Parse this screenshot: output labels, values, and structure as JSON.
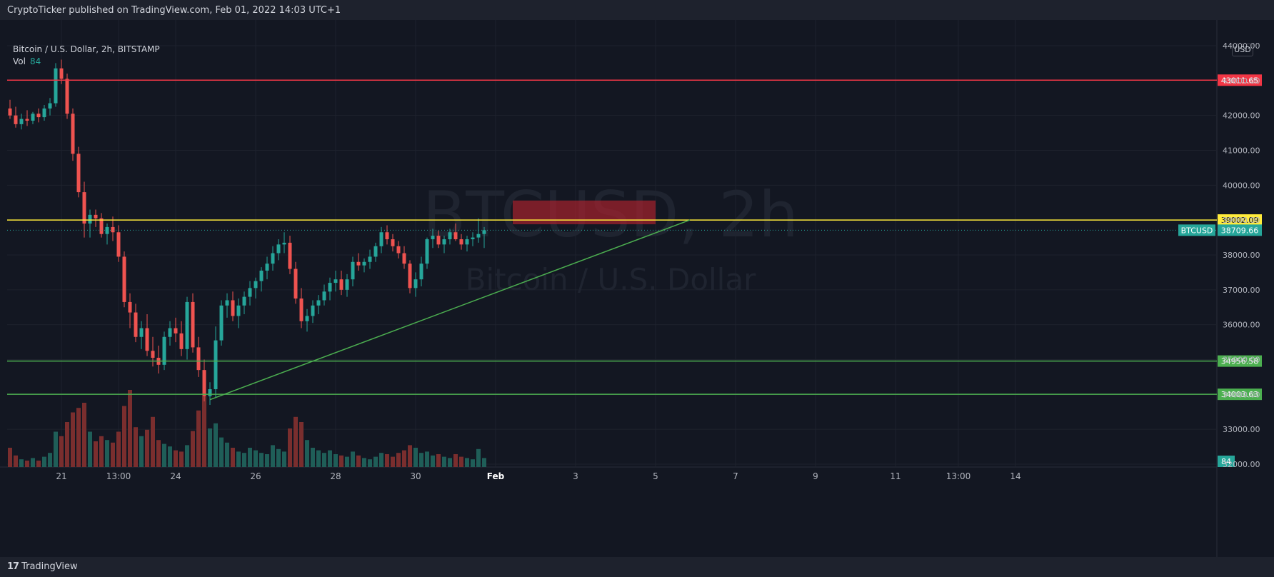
{
  "header": {
    "publisher": "CryptoTicker published on TradingView.com, Feb 01, 2022 14:03 UTC+1"
  },
  "footer": {
    "logo_text": "TradingView",
    "logo_mark": "17"
  },
  "legend": {
    "symbol": "Bitcoin / U.S. Dollar, 2h, BITSTAMP",
    "vol_label": "Vol",
    "vol_value": "84"
  },
  "currency_label": "USD",
  "watermark": {
    "ticker": "BTCUSD, 2h",
    "name": "Bitcoin / U.S. Dollar"
  },
  "colors": {
    "bg": "#131722",
    "up": "#26a69a",
    "down": "#ef5350",
    "red_line": "#f23645",
    "yellow_line": "#ffeb3b",
    "green_line": "#4caf50",
    "zone": "#b2222e"
  },
  "chart_data": {
    "type": "candlestick",
    "symbol": "BTCUSD",
    "timeframe": "2h",
    "ylim": [
      32000,
      44500
    ],
    "y_ticks": [
      "44000.00",
      "43000.00",
      "42000.00",
      "41000.00",
      "40000.00",
      "39000.00",
      "38000.00",
      "37000.00",
      "36000.00",
      "35000.00",
      "34000.00",
      "33000.00",
      "32000.00"
    ],
    "x_ticks": [
      {
        "label": "21",
        "bar": 9
      },
      {
        "label": "13:00",
        "bar": 19
      },
      {
        "label": "24",
        "bar": 29
      },
      {
        "label": "26",
        "bar": 43
      },
      {
        "label": "28",
        "bar": 57
      },
      {
        "label": "30",
        "bar": 71
      },
      {
        "label": "Feb",
        "bar": 85
      },
      {
        "label": "3",
        "bar": 99
      },
      {
        "label": "5",
        "bar": 113
      },
      {
        "label": "7",
        "bar": 127
      },
      {
        "label": "9",
        "bar": 141
      },
      {
        "label": "11",
        "bar": 155
      },
      {
        "label": "13:00",
        "bar": 166
      },
      {
        "label": "14",
        "bar": 176
      }
    ],
    "horizontal_levels": [
      {
        "name": "resistance",
        "value": 43011.65,
        "label": "43011.65",
        "color": "#f23645"
      },
      {
        "name": "pivot",
        "value": 39002.09,
        "label": "39002.09",
        "color": "#ffeb3b"
      },
      {
        "name": "support-1",
        "value": 34956.58,
        "label": "34956.58",
        "color": "#4caf50"
      },
      {
        "name": "support-2",
        "value": 34003.63,
        "label": "34003.63",
        "color": "#4caf50"
      }
    ],
    "last_price": {
      "symbol": "BTCUSD",
      "value": 38709.66,
      "label": "38709.66"
    },
    "volume_last": {
      "label": "84"
    },
    "trendline": {
      "from": {
        "bar": 35,
        "price": 33850
      },
      "to": {
        "bar": 119,
        "price": 39002
      }
    },
    "zone": {
      "from_bar": 88,
      "to_bar": 113,
      "top": 39560,
      "bottom": 38880
    },
    "candles": [
      [
        42200,
        42450,
        41900,
        42000,
        30
      ],
      [
        42000,
        42250,
        41650,
        41750,
        18
      ],
      [
        41750,
        42050,
        41600,
        41900,
        12
      ],
      [
        41900,
        42150,
        41700,
        41850,
        10
      ],
      [
        41850,
        42100,
        41750,
        42050,
        14
      ],
      [
        42050,
        42200,
        41800,
        41950,
        10
      ],
      [
        41950,
        42300,
        41850,
        42200,
        16
      ],
      [
        42200,
        42500,
        42000,
        42350,
        22
      ],
      [
        42350,
        43500,
        42250,
        43350,
        55
      ],
      [
        43350,
        43600,
        42900,
        43050,
        48
      ],
      [
        43050,
        43200,
        41900,
        42050,
        70
      ],
      [
        42050,
        42200,
        40700,
        40900,
        85
      ],
      [
        40900,
        41100,
        39650,
        39800,
        92
      ],
      [
        39800,
        40100,
        38500,
        38900,
        100
      ],
      [
        38900,
        39300,
        38500,
        39150,
        55
      ],
      [
        39150,
        39300,
        38800,
        39050,
        40
      ],
      [
        39050,
        39200,
        38500,
        38600,
        48
      ],
      [
        38600,
        38900,
        38300,
        38800,
        42
      ],
      [
        38800,
        39100,
        38400,
        38650,
        38
      ],
      [
        38650,
        38850,
        37800,
        37950,
        55
      ],
      [
        37950,
        38100,
        36500,
        36650,
        95
      ],
      [
        36650,
        36900,
        35900,
        36350,
        120
      ],
      [
        36350,
        36600,
        35500,
        35650,
        62
      ],
      [
        35650,
        36100,
        35300,
        35900,
        48
      ],
      [
        35900,
        36300,
        35100,
        35250,
        58
      ],
      [
        35250,
        35650,
        34800,
        35050,
        78
      ],
      [
        35050,
        35400,
        34600,
        34850,
        42
      ],
      [
        34850,
        35800,
        34700,
        35650,
        36
      ],
      [
        35650,
        36100,
        35400,
        35900,
        32
      ],
      [
        35900,
        36200,
        35500,
        35750,
        26
      ],
      [
        35750,
        36100,
        35100,
        35300,
        24
      ],
      [
        35300,
        36800,
        35000,
        36650,
        34
      ],
      [
        36650,
        36900,
        35200,
        35350,
        56
      ],
      [
        35350,
        35650,
        34500,
        34700,
        88
      ],
      [
        34700,
        35000,
        33800,
        33950,
        110
      ],
      [
        33950,
        34350,
        33700,
        34150,
        60
      ],
      [
        34150,
        35950,
        33900,
        35550,
        68
      ],
      [
        35550,
        36700,
        35400,
        36550,
        46
      ],
      [
        36550,
        36900,
        36200,
        36700,
        38
      ],
      [
        36700,
        36950,
        36100,
        36250,
        30
      ],
      [
        36250,
        36750,
        35900,
        36550,
        24
      ],
      [
        36550,
        36950,
        36300,
        36800,
        22
      ],
      [
        36800,
        37250,
        36550,
        37050,
        30
      ],
      [
        37050,
        37350,
        36750,
        37250,
        26
      ],
      [
        37250,
        37650,
        36950,
        37550,
        22
      ],
      [
        37550,
        37950,
        37300,
        37750,
        20
      ],
      [
        37750,
        38250,
        37550,
        38050,
        34
      ],
      [
        38050,
        38450,
        37850,
        38300,
        28
      ],
      [
        38300,
        38650,
        38050,
        38350,
        24
      ],
      [
        38350,
        38550,
        37450,
        37600,
        60
      ],
      [
        37600,
        37800,
        36600,
        36750,
        78
      ],
      [
        36750,
        37050,
        35900,
        36100,
        70
      ],
      [
        36100,
        36450,
        35800,
        36250,
        42
      ],
      [
        36250,
        36700,
        36050,
        36550,
        30
      ],
      [
        36550,
        36850,
        36300,
        36700,
        26
      ],
      [
        36700,
        37150,
        36550,
        36950,
        22
      ],
      [
        36950,
        37350,
        36700,
        37200,
        26
      ],
      [
        37200,
        37550,
        36950,
        37300,
        20
      ],
      [
        37300,
        37550,
        36850,
        37000,
        18
      ],
      [
        37000,
        37450,
        36800,
        37300,
        16
      ],
      [
        37300,
        37950,
        37100,
        37800,
        24
      ],
      [
        37800,
        38050,
        37550,
        37700,
        18
      ],
      [
        37700,
        37900,
        37500,
        37800,
        14
      ],
      [
        37800,
        38150,
        37600,
        37950,
        12
      ],
      [
        37950,
        38350,
        37800,
        38250,
        16
      ],
      [
        38250,
        38800,
        38050,
        38650,
        22
      ],
      [
        38650,
        38850,
        38300,
        38450,
        20
      ],
      [
        38450,
        38600,
        38100,
        38250,
        16
      ],
      [
        38250,
        38400,
        37900,
        38050,
        22
      ],
      [
        38050,
        38250,
        37600,
        37750,
        26
      ],
      [
        37750,
        37850,
        36900,
        37050,
        34
      ],
      [
        37050,
        37500,
        36800,
        37300,
        30
      ],
      [
        37300,
        37950,
        37100,
        37750,
        22
      ],
      [
        37750,
        38500,
        37600,
        38450,
        24
      ],
      [
        38450,
        38750,
        38200,
        38550,
        18
      ],
      [
        38550,
        38700,
        38200,
        38300,
        20
      ],
      [
        38300,
        38550,
        38050,
        38450,
        16
      ],
      [
        38450,
        38750,
        38300,
        38650,
        14
      ],
      [
        38650,
        38900,
        38400,
        38450,
        20
      ],
      [
        38450,
        38600,
        38150,
        38300,
        16
      ],
      [
        38300,
        38550,
        38100,
        38450,
        14
      ],
      [
        38450,
        38650,
        38250,
        38500,
        12
      ],
      [
        38500,
        39050,
        38350,
        38600,
        28
      ],
      [
        38600,
        38800,
        38200,
        38709.66,
        14
      ]
    ]
  }
}
